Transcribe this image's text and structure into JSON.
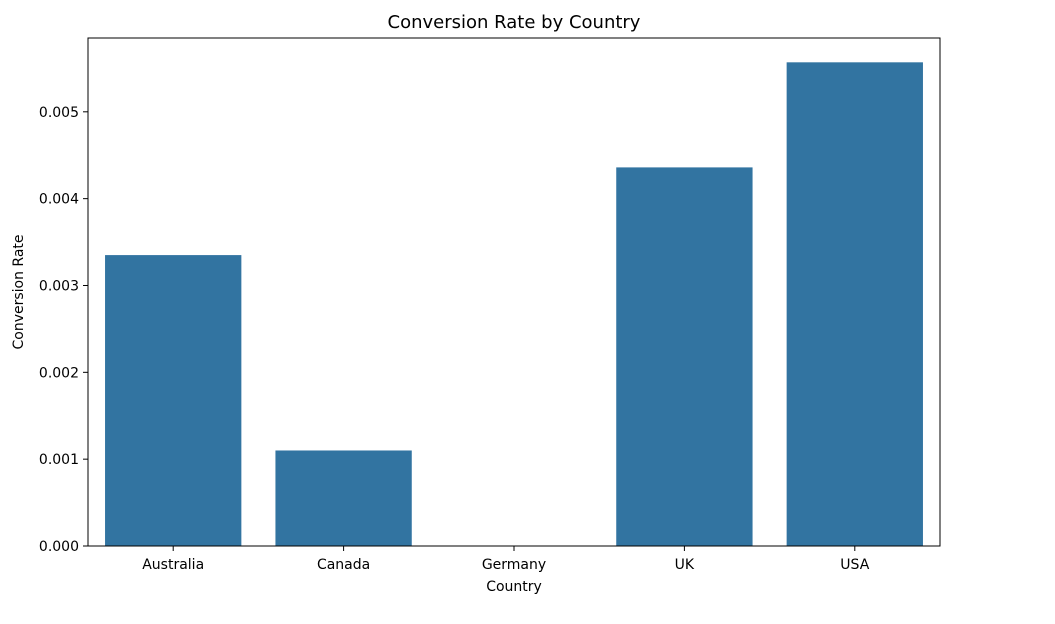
{
  "chart_data": {
    "type": "bar",
    "title": "Conversion Rate by Country",
    "xlabel": "Country",
    "ylabel": "Conversion Rate",
    "categories": [
      "Australia",
      "Canada",
      "Germany",
      "UK",
      "USA"
    ],
    "values": [
      0.00335,
      0.0011,
      0.0,
      0.00436,
      0.00557
    ],
    "ylim": [
      0,
      0.00585
    ],
    "yticks": [
      "0.000",
      "0.001",
      "0.002",
      "0.003",
      "0.004",
      "0.005"
    ],
    "ytick_values": [
      0,
      0.001,
      0.002,
      0.003,
      0.004,
      0.005
    ],
    "bar_color": "#3274a1",
    "grid": false,
    "legend": "none"
  }
}
